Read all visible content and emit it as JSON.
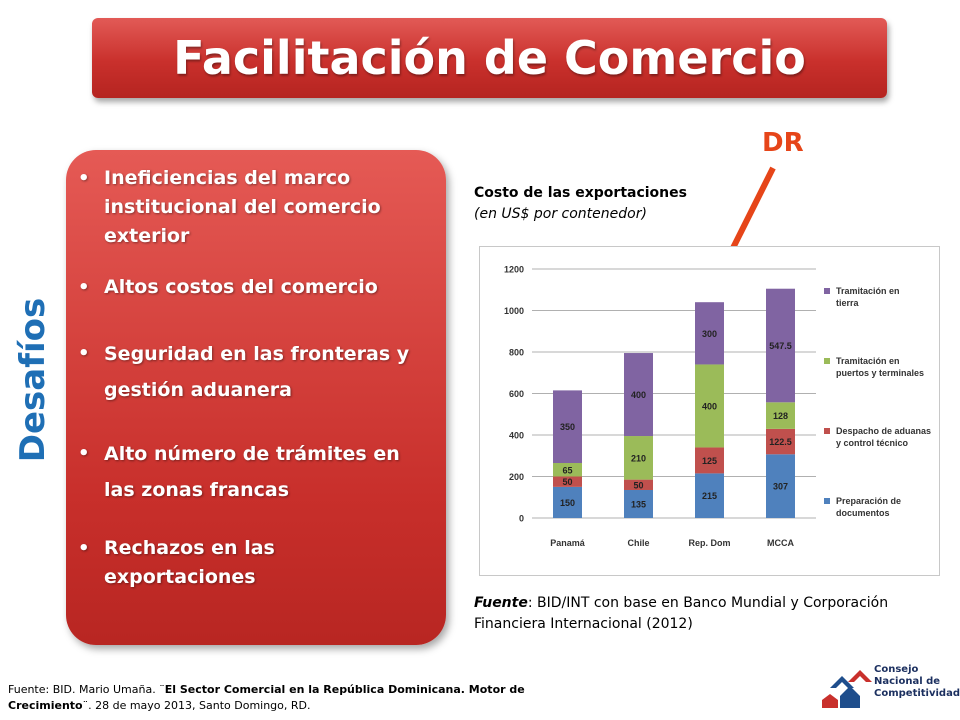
{
  "title": "Facilitación de Comercio",
  "side_label": "Desafíos",
  "bullets": [
    "Ineficiencias del marco institucional del comercio exterior",
    "Altos costos del comercio",
    "Seguridad en las fronteras y gestión aduanera",
    "Alto número de trámites en las zonas francas",
    "Rechazos en las exportaciones"
  ],
  "annotation": {
    "label": "DR",
    "color": "#e64519"
  },
  "chart_caption": {
    "line1": "Costo de las exportaciones",
    "line2": "(en US$ por contenedor)"
  },
  "source": {
    "prefix": "Fuente",
    "text": ": BID/INT con base en Banco Mundial y Corporación Financiera Internacional (2012)"
  },
  "footnote": {
    "prefix": "Fuente: BID. Mario Umaña. ¨",
    "bold": "El Sector Comercial en la República Dominicana. Motor de Crecimiento",
    "suffix": "¨. 28 de mayo 2013, Santo Domingo, RD."
  },
  "logo": {
    "lines": [
      "Consejo",
      "Nacional de",
      "Competitividad"
    ]
  },
  "colors": {
    "red": "#c9302c",
    "blue_label": "#1f6fb5"
  },
  "chart_data": {
    "type": "bar",
    "stacked": true,
    "categories": [
      "Panamá",
      "Chile",
      "Rep. Dom",
      "MCCA"
    ],
    "ylim": [
      0,
      1200
    ],
    "yticks": [
      0,
      200,
      400,
      600,
      800,
      1000,
      1200
    ],
    "grid": true,
    "legend_position": "right",
    "series": [
      {
        "name": "Preparación de documentos",
        "color": "#4f81bd",
        "values": [
          150,
          135,
          215,
          307
        ]
      },
      {
        "name": "Despacho de aduanas y control técnico",
        "color": "#c0504d",
        "values": [
          50,
          50,
          125,
          122.5
        ]
      },
      {
        "name": "Tramitación en puertos y terminales",
        "color": "#9bbb59",
        "values": [
          65,
          210,
          400,
          128
        ]
      },
      {
        "name": "Tramitación en tierra",
        "color": "#8064a2",
        "values": [
          350,
          400,
          300,
          547.5
        ]
      }
    ]
  }
}
